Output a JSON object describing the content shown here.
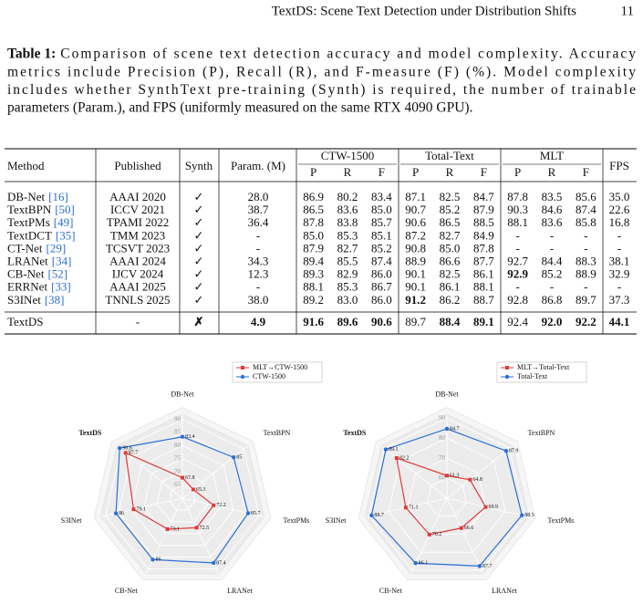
{
  "header": {
    "running_title": "TextDS: Scene Text Detection under Distribution Shifts",
    "page_number": "11"
  },
  "caption": {
    "label": "Table 1:",
    "lines": [
      "Comparison of scene text detection accuracy and model complexity. Accuracy",
      "metrics include Precision (P), Recall (R), and F-measure (F) (%). Model complexity",
      "includes whether SynthText pre-training (Synth) is required, the number of trainable",
      "parameters (Param.), and FPS (uniformly measured on the same RTX 4090 GPU)."
    ]
  },
  "table": {
    "headers": [
      "Method",
      "Published",
      "Synth",
      "Param. (M)",
      "CTW-1500",
      "Total-Text",
      "MLT",
      "FPS"
    ],
    "subheaders": [
      "P",
      "R",
      "F"
    ],
    "ref_color": "#2a6fd6",
    "rows": [
      {
        "method": "DB-Net",
        "ref": "[16]",
        "cells": [
          "AAAI 2020",
          "✓",
          "28.0",
          "86.9",
          "80.2",
          "83.4",
          "87.1",
          "82.5",
          "84.7",
          "87.8",
          "83.5",
          "85.6",
          "35.0"
        ],
        "bold": []
      },
      {
        "method": "TextBPN",
        "ref": "[50]",
        "cells": [
          "ICCV 2021",
          "✓",
          "38.7",
          "86.5",
          "83.6",
          "85.0",
          "90.7",
          "85.2",
          "87.9",
          "90.3",
          "84.6",
          "87.4",
          "22.6"
        ],
        "bold": []
      },
      {
        "method": "TextPMs",
        "ref": "[49]",
        "cells": [
          "TPAMI 2022",
          "✓",
          "36.4",
          "87.8",
          "83.8",
          "85.7",
          "90.6",
          "86.5",
          "88.5",
          "88.1",
          "83.6",
          "85.8",
          "16.8"
        ],
        "bold": []
      },
      {
        "method": "TextDCT",
        "ref": "[35]",
        "cells": [
          "TMM 2023",
          "✓",
          "-",
          "85.0",
          "85.3",
          "85.1",
          "87.2",
          "82.7",
          "84.9",
          "-",
          "-",
          "-",
          "-"
        ],
        "bold": []
      },
      {
        "method": "CT-Net",
        "ref": "[29]",
        "cells": [
          "TCSVT 2023",
          "✓",
          "-",
          "87.9",
          "82.7",
          "85.2",
          "90.8",
          "85.0",
          "87.8",
          "-",
          "-",
          "-",
          "-"
        ],
        "bold": []
      },
      {
        "method": "LRANet",
        "ref": "[34]",
        "cells": [
          "AAAI 2024",
          "✓",
          "34.3",
          "89.4",
          "85.5",
          "87.4",
          "88.9",
          "86.6",
          "87.7",
          "92.7",
          "84.4",
          "88.3",
          "38.1"
        ],
        "bold": []
      },
      {
        "method": "CB-Net",
        "ref": "[52]",
        "cells": [
          "IJCV 2024",
          "✓",
          "12.3",
          "89.3",
          "82.9",
          "86.0",
          "90.1",
          "82.5",
          "86.1",
          "92.9",
          "85.2",
          "88.9",
          "32.9"
        ],
        "bold": [
          9
        ]
      },
      {
        "method": "ERRNet",
        "ref": "[33]",
        "cells": [
          "AAAI 2025",
          "✓",
          "-",
          "88.1",
          "85.3",
          "86.7",
          "90.1",
          "86.1",
          "88.1",
          "-",
          "-",
          "-",
          "-"
        ],
        "bold": []
      },
      {
        "method": "S3INet",
        "ref": "[38]",
        "cells": [
          "TNNLS 2025",
          "✓",
          "38.0",
          "89.2",
          "83.0",
          "86.0",
          "91.2",
          "86.2",
          "88.7",
          "92.8",
          "86.8",
          "89.7",
          "37.3"
        ],
        "bold": [
          6
        ]
      },
      {
        "method": "TextDS",
        "cells": [
          "-",
          "✗",
          "4.9",
          "91.6",
          "89.6",
          "90.6",
          "89.7",
          "88.4",
          "89.1",
          "92.4",
          "92.0",
          "92.2",
          "44.1"
        ],
        "bold": [
          1,
          2,
          3,
          4,
          5,
          7,
          8,
          10,
          11,
          12
        ]
      }
    ]
  },
  "chart_data": [
    {
      "type": "radar",
      "axes": [
        "DB-Net",
        "TextBPN",
        "TextPMs",
        "LRANet",
        "CB-Net",
        "S3INet",
        "TextDS"
      ],
      "highlight_axis": 6,
      "highlight_color": "#e02424",
      "rlim": [
        60,
        92
      ],
      "rticks": [
        65,
        70,
        75,
        80,
        85,
        90
      ],
      "grid": true,
      "series": [
        {
          "name": "MLT→CTW-1500",
          "color": "#e03a3a",
          "marker": "square",
          "values": [
            67.8,
            65.3,
            72.2,
            72.5,
            73.1,
            79.1,
            87.7
          ]
        },
        {
          "name": "CTW-1500",
          "color": "#2a6fd6",
          "marker": "circle",
          "values": [
            83.4,
            85,
            85.7,
            87.4,
            86,
            86,
            90.6
          ]
        }
      ]
    },
    {
      "type": "radar",
      "axes": [
        "DB-Net",
        "TextBPN",
        "TextPMs",
        "LRANet",
        "CB-Net",
        "S3INet",
        "TextDS"
      ],
      "highlight_axis": 6,
      "highlight_color": "#e02424",
      "rlim": [
        50,
        92
      ],
      "rticks": [
        60,
        70,
        80,
        90
      ],
      "grid": true,
      "series": [
        {
          "name": "MLT→Total-Text",
          "color": "#e03a3a",
          "marker": "square",
          "values": [
            61.3,
            64.8,
            69.9,
            66.6,
            70.2,
            71.1,
            82.2
          ]
        },
        {
          "name": "Total-Text",
          "color": "#2a6fd6",
          "marker": "circle",
          "values": [
            84.7,
            87.9,
            88.5,
            87.7,
            86.1,
            88.7,
            89.1
          ]
        }
      ]
    }
  ]
}
